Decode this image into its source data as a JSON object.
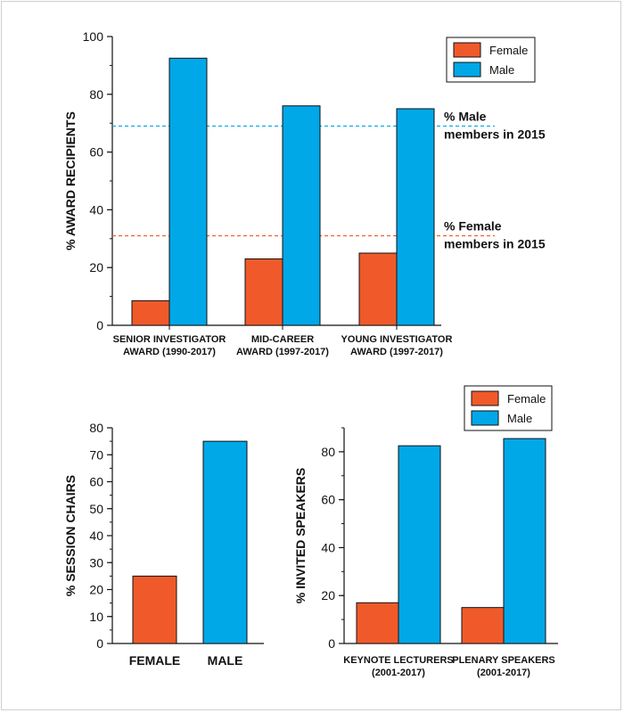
{
  "colors": {
    "female": "#f05a2a",
    "male": "#00a8e8"
  },
  "chart_data": [
    {
      "type": "bar",
      "ylabel": "% AWARD RECIPIENTS",
      "ylim": [
        0,
        100
      ],
      "yticks": [
        0,
        20,
        40,
        60,
        80,
        100
      ],
      "categories": [
        [
          "SENIOR INVESTIGATOR",
          "AWARD (1990-2017)"
        ],
        [
          "MID-CAREER",
          "AWARD (1997-2017)"
        ],
        [
          "YOUNG INVESTIGATOR",
          "AWARD (1997-2017)"
        ]
      ],
      "series": [
        {
          "name": "Female",
          "values": [
            8.5,
            23,
            25
          ]
        },
        {
          "name": "Male",
          "values": [
            92.5,
            76,
            75
          ]
        }
      ],
      "reference_lines": [
        {
          "series": "Male",
          "value": 69,
          "label": [
            "% Male",
            "members in 2015"
          ]
        },
        {
          "series": "Female",
          "value": 31,
          "label": [
            "% Female",
            "members in 2015"
          ]
        }
      ],
      "legend": "top-right",
      "grid": false
    },
    {
      "type": "bar",
      "ylabel": "% SESSION CHAIRS",
      "ylim": [
        0,
        80
      ],
      "yticks": [
        0,
        10,
        20,
        30,
        40,
        50,
        60,
        70,
        80
      ],
      "categories": [
        "FEMALE",
        "MALE"
      ],
      "values": [
        25,
        75
      ],
      "grid": false
    },
    {
      "type": "bar",
      "ylabel": "% INVITED SPEAKERS",
      "ylim": [
        0,
        90
      ],
      "yticks": [
        0,
        20,
        40,
        60,
        80
      ],
      "categories": [
        [
          "KEYNOTE LECTURERS",
          "(2001-2017)"
        ],
        [
          "PLENARY SPEAKERS",
          "(2001-2017)"
        ]
      ],
      "series": [
        {
          "name": "Female",
          "values": [
            17,
            15
          ]
        },
        {
          "name": "Male",
          "values": [
            82.5,
            85.5
          ]
        }
      ],
      "legend": "top-right",
      "grid": false
    }
  ]
}
